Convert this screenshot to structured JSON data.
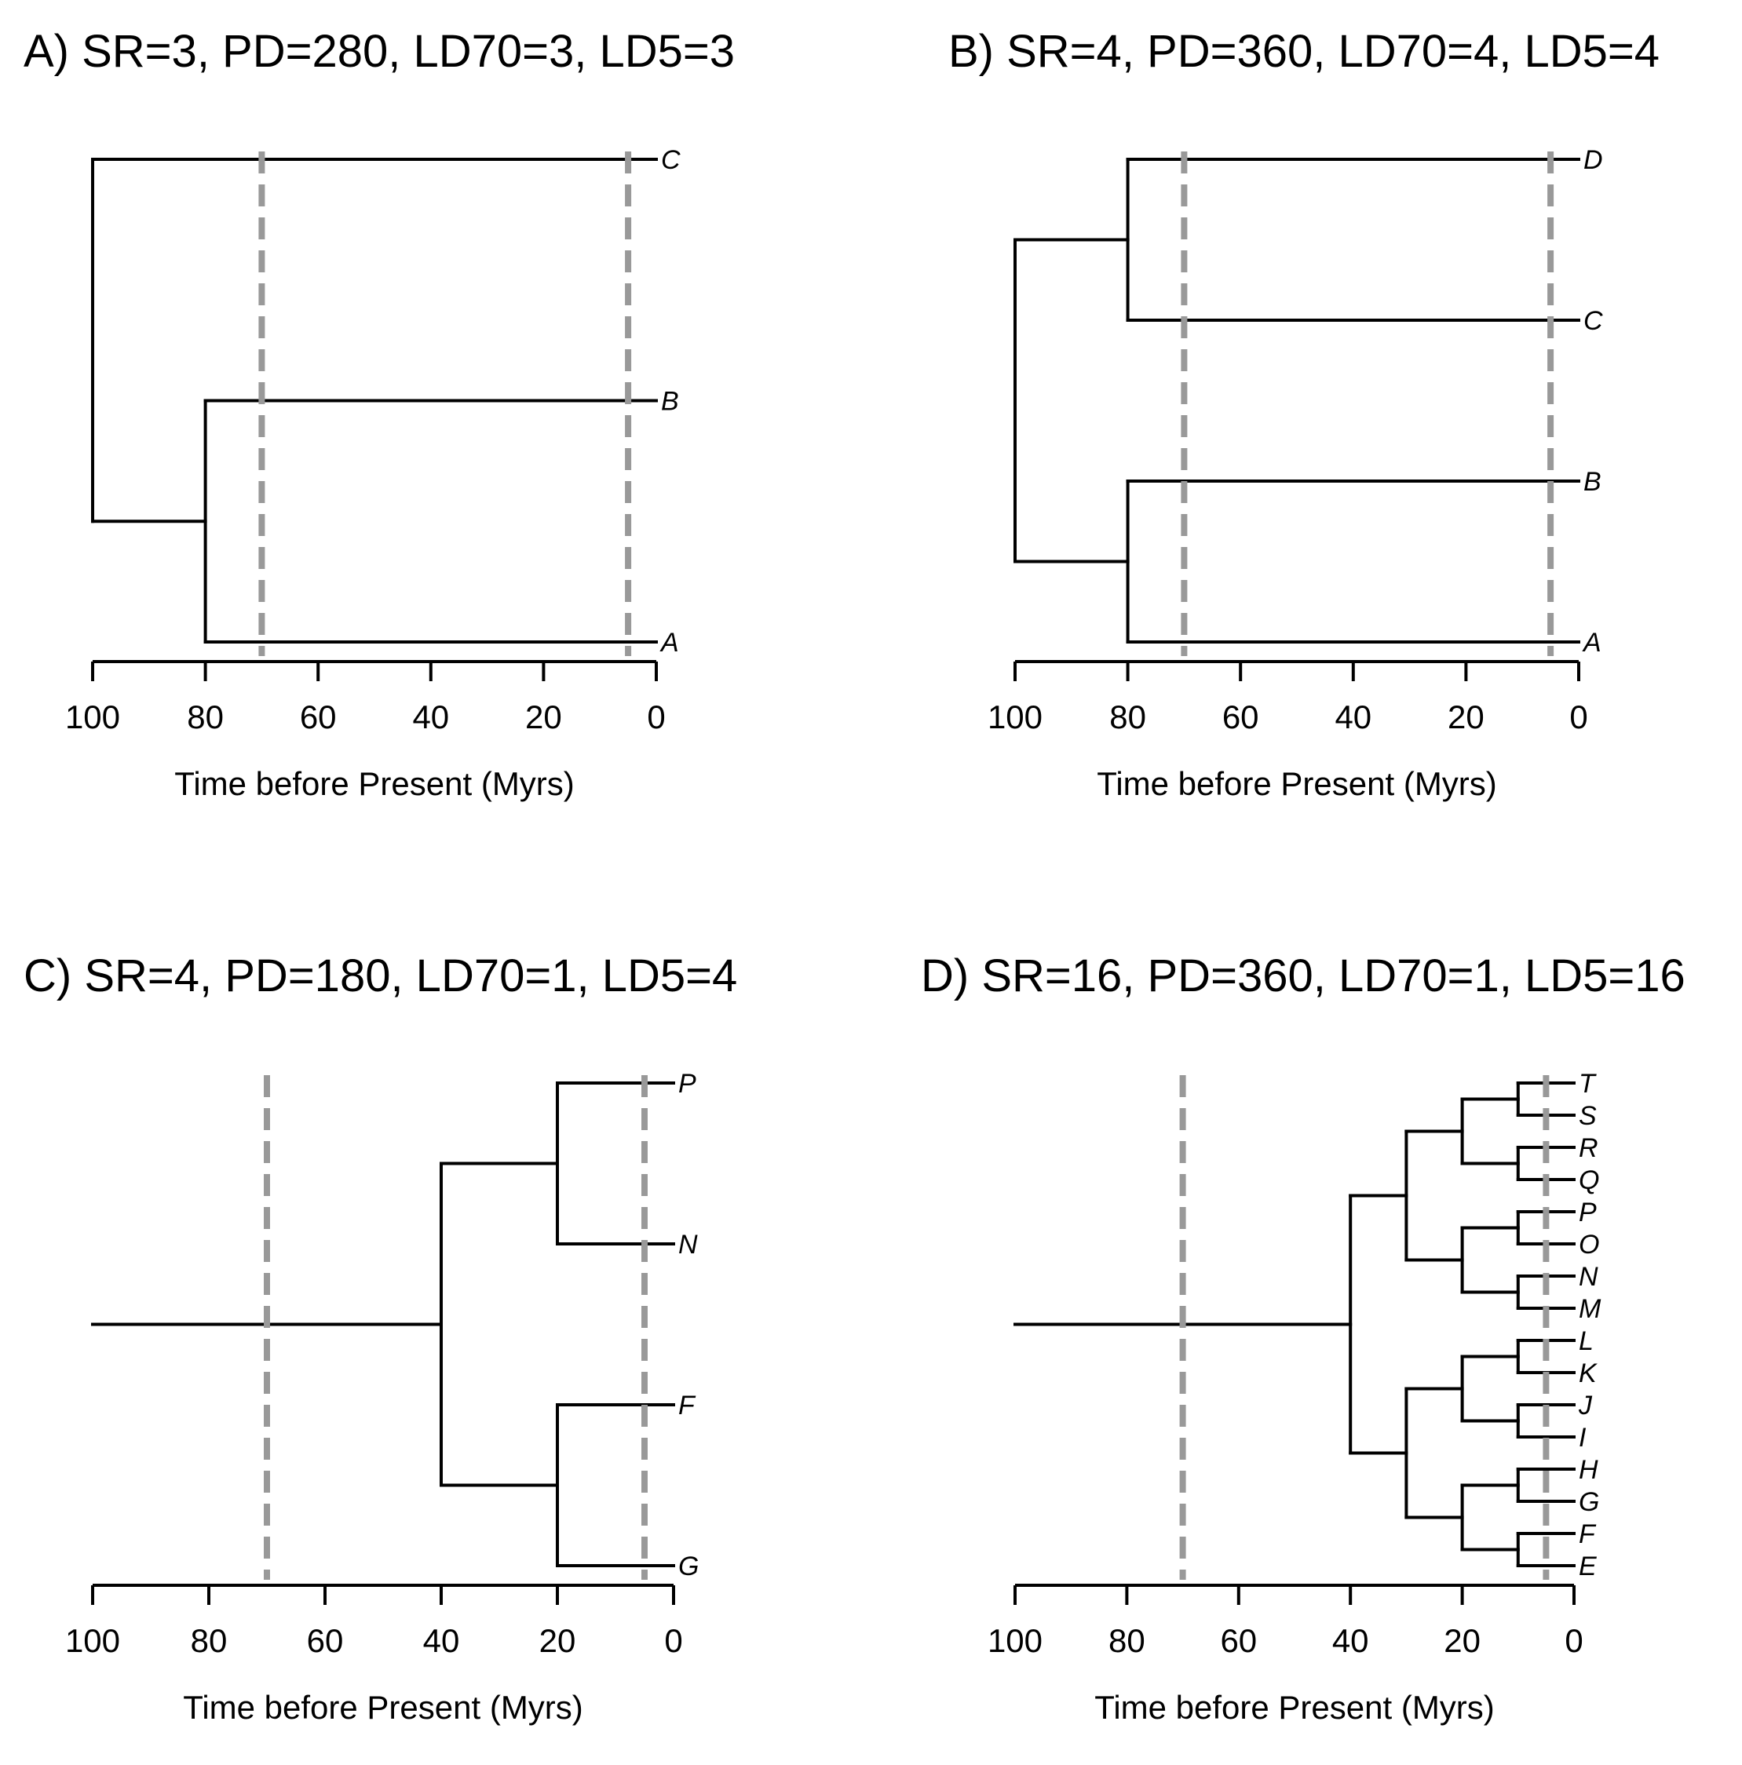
{
  "chart_data": [
    {
      "type": "phylogenetic-tree",
      "title": "A) SR=3, PD=280, LD70=3, LD5=3",
      "xlabel": "Time before Present (Myrs)",
      "xlim": [
        100,
        0
      ],
      "ticks": [
        100,
        80,
        60,
        40,
        20,
        0
      ],
      "tick_labels": [
        "100",
        "80",
        "60",
        "40",
        "20",
        "0"
      ],
      "reference_lines": [
        70,
        5
      ],
      "tips": [
        "C",
        "B",
        "A"
      ],
      "tree": {
        "age": 100,
        "children": [
          {
            "tip": "C"
          },
          {
            "age": 80,
            "children": [
              {
                "tip": "B"
              },
              {
                "tip": "A"
              }
            ]
          }
        ]
      }
    },
    {
      "type": "phylogenetic-tree",
      "title": "B) SR=4, PD=360, LD70=4, LD5=4",
      "xlabel": "Time before Present (Myrs)",
      "xlim": [
        100,
        0
      ],
      "ticks": [
        100,
        80,
        60,
        40,
        20,
        0
      ],
      "tick_labels": [
        "100",
        "80",
        "60",
        "40",
        "20",
        "0"
      ],
      "reference_lines": [
        70,
        5
      ],
      "tips": [
        "D",
        "C",
        "B",
        "A"
      ],
      "tree": {
        "age": 100,
        "children": [
          {
            "age": 80,
            "children": [
              {
                "tip": "D"
              },
              {
                "tip": "C"
              }
            ]
          },
          {
            "age": 80,
            "children": [
              {
                "tip": "B"
              },
              {
                "tip": "A"
              }
            ]
          }
        ]
      }
    },
    {
      "type": "phylogenetic-tree",
      "title": "C) SR=4, PD=180, LD70=1, LD5=4",
      "xlabel": "Time before Present (Myrs)",
      "xlim": [
        100,
        0
      ],
      "ticks": [
        100,
        80,
        60,
        40,
        20,
        0
      ],
      "tick_labels": [
        "100",
        "80",
        "60",
        "40",
        "20",
        "0"
      ],
      "reference_lines": [
        70,
        5
      ],
      "tips": [
        "P",
        "N",
        "F",
        "G"
      ],
      "tree": {
        "age": 100,
        "children": [
          {
            "age": 40,
            "children": [
              {
                "age": 20,
                "children": [
                  {
                    "tip": "P"
                  },
                  {
                    "tip": "N"
                  }
                ]
              },
              {
                "age": 20,
                "children": [
                  {
                    "tip": "F"
                  },
                  {
                    "tip": "G"
                  }
                ]
              }
            ]
          }
        ]
      }
    },
    {
      "type": "phylogenetic-tree",
      "title": "D) SR=16, PD=360, LD70=1, LD5=16",
      "xlabel": "Time before Present (Myrs)",
      "xlim": [
        100,
        0
      ],
      "ticks": [
        100,
        80,
        60,
        40,
        20,
        0
      ],
      "tick_labels": [
        "100",
        "80",
        "60",
        "40",
        "20",
        "0"
      ],
      "reference_lines": [
        70,
        5
      ],
      "tips": [
        "T",
        "S",
        "R",
        "Q",
        "P",
        "O",
        "N",
        "M",
        "L",
        "K",
        "J",
        "I",
        "H",
        "G",
        "F",
        "E"
      ],
      "tree": {
        "age": 100,
        "children": [
          {
            "age": 40,
            "children": [
              {
                "age": 30,
                "children": [
                  {
                    "age": 20,
                    "children": [
                      {
                        "age": 10,
                        "children": [
                          {
                            "tip": "T"
                          },
                          {
                            "tip": "S"
                          }
                        ]
                      },
                      {
                        "age": 10,
                        "children": [
                          {
                            "tip": "R"
                          },
                          {
                            "tip": "Q"
                          }
                        ]
                      }
                    ]
                  },
                  {
                    "age": 20,
                    "children": [
                      {
                        "age": 10,
                        "children": [
                          {
                            "tip": "P"
                          },
                          {
                            "tip": "O"
                          }
                        ]
                      },
                      {
                        "age": 10,
                        "children": [
                          {
                            "tip": "N"
                          },
                          {
                            "tip": "M"
                          }
                        ]
                      }
                    ]
                  }
                ]
              },
              {
                "age": 30,
                "children": [
                  {
                    "age": 20,
                    "children": [
                      {
                        "age": 10,
                        "children": [
                          {
                            "tip": "L"
                          },
                          {
                            "tip": "K"
                          }
                        ]
                      },
                      {
                        "age": 10,
                        "children": [
                          {
                            "tip": "J"
                          },
                          {
                            "tip": "I"
                          }
                        ]
                      }
                    ]
                  },
                  {
                    "age": 20,
                    "children": [
                      {
                        "age": 10,
                        "children": [
                          {
                            "tip": "H"
                          },
                          {
                            "tip": "G"
                          }
                        ]
                      },
                      {
                        "age": 10,
                        "children": [
                          {
                            "tip": "F"
                          },
                          {
                            "tip": "E"
                          }
                        ]
                      }
                    ]
                  }
                ]
              }
            ]
          }
        ]
      }
    }
  ]
}
